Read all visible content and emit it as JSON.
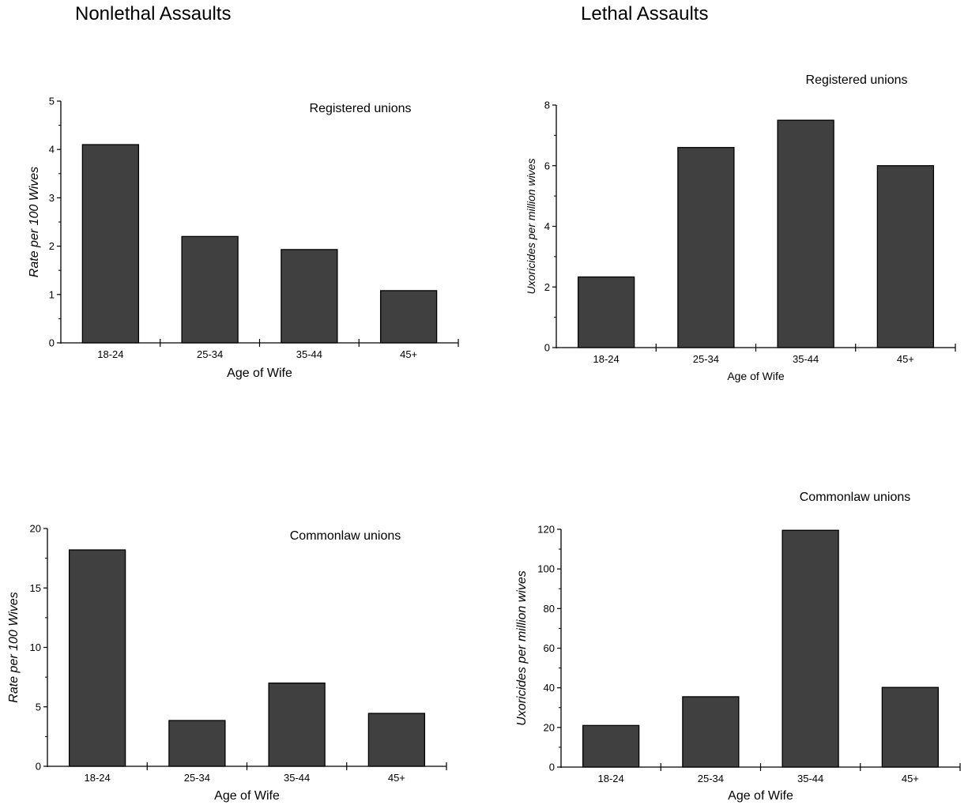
{
  "column_titles": {
    "left": "Nonlethal Assaults",
    "right": "Lethal Assaults"
  },
  "bar_color": "#404040",
  "chart_data": [
    {
      "type": "bar",
      "subtitle": "Registered unions",
      "categories": [
        "18-24",
        "25-34",
        "35-44",
        "45+"
      ],
      "values": [
        4.1,
        2.2,
        1.93,
        1.08
      ],
      "xlabel": "Age of Wife",
      "ylabel": "Rate per 100 Wives",
      "ylim": [
        0,
        5
      ],
      "yticks": [
        "0",
        "1",
        "2",
        "3",
        "4",
        "5"
      ]
    },
    {
      "type": "bar",
      "subtitle": "Registered unions",
      "categories": [
        "18-24",
        "25-34",
        "35-44",
        "45+"
      ],
      "values": [
        2.33,
        6.6,
        7.5,
        6.0
      ],
      "xlabel": "Age of Wife",
      "ylabel": "Uxoricides per million wives",
      "ylim": [
        0,
        8
      ],
      "yticks": [
        "0",
        "2",
        "4",
        "6",
        "8"
      ]
    },
    {
      "type": "bar",
      "subtitle": "Commonlaw unions",
      "categories": [
        "18-24",
        "25-34",
        "35-44",
        "45+"
      ],
      "values": [
        18.2,
        3.85,
        7.0,
        4.45
      ],
      "xlabel": "Age of Wife",
      "ylabel": "Rate per 100 Wives",
      "ylim": [
        0,
        20
      ],
      "yticks": [
        "0",
        "5",
        "10",
        "15",
        "20"
      ]
    },
    {
      "type": "bar",
      "subtitle": "Commonlaw unions",
      "categories": [
        "18-24",
        "25-34",
        "35-44",
        "45+"
      ],
      "values": [
        21,
        35.5,
        119.5,
        40.2
      ],
      "xlabel": "Age of Wife",
      "ylabel": "Uxoricides per million wives",
      "ylim": [
        0,
        120
      ],
      "yticks": [
        "0",
        "20",
        "40",
        "60",
        "80",
        "100",
        "120"
      ]
    }
  ]
}
